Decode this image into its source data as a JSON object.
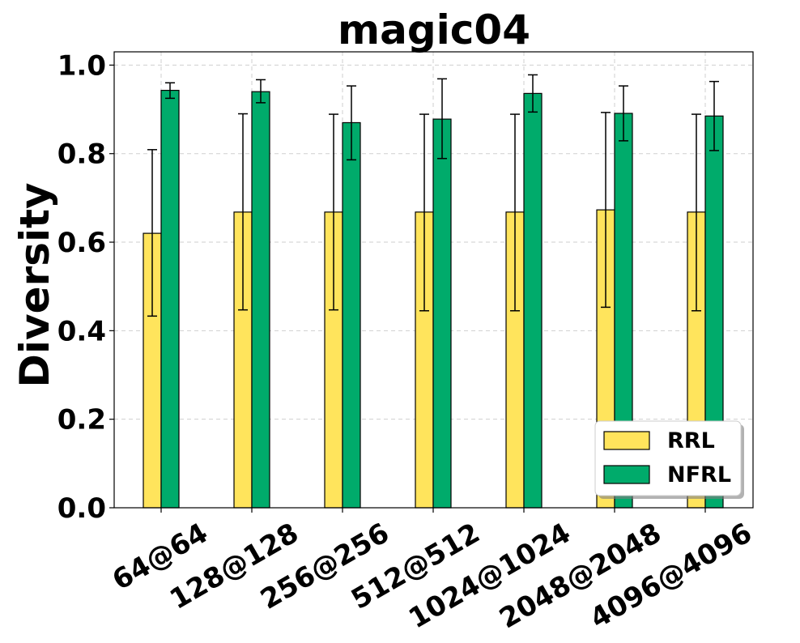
{
  "chart_data": {
    "type": "bar",
    "title": "magic04",
    "xlabel": "",
    "ylabel": "Diversity",
    "categories": [
      "64@64",
      "128@128",
      "256@256",
      "512@512",
      "1024@1024",
      "2048@2048",
      "4096@4096"
    ],
    "ylim": [
      0.0,
      1.03
    ],
    "yticks": [
      "0.0",
      "0.2",
      "0.4",
      "0.6",
      "0.8",
      "1.0"
    ],
    "grid": true,
    "legend_position": "lower-right",
    "series": [
      {
        "name": "RRL",
        "color": "#ffe45c",
        "values": [
          0.62,
          0.668,
          0.668,
          0.668,
          0.668,
          0.673,
          0.668
        ],
        "err_low": [
          0.433,
          0.447,
          0.447,
          0.445,
          0.445,
          0.453,
          0.445
        ],
        "err_high": [
          0.809,
          0.89,
          0.889,
          0.889,
          0.889,
          0.893,
          0.889
        ]
      },
      {
        "name": "NFRL",
        "color": "#00ab6b",
        "values": [
          0.943,
          0.94,
          0.87,
          0.878,
          0.936,
          0.891,
          0.885
        ],
        "err_low": [
          0.925,
          0.915,
          0.786,
          0.789,
          0.894,
          0.829,
          0.807
        ],
        "err_high": [
          0.96,
          0.967,
          0.953,
          0.969,
          0.978,
          0.953,
          0.963
        ]
      }
    ]
  }
}
